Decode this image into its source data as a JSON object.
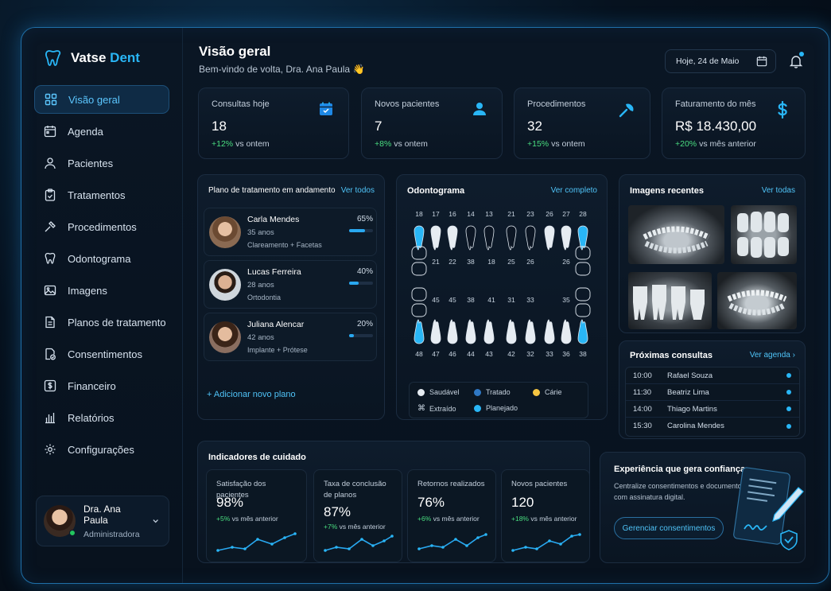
{
  "brand": {
    "name_main": "Vatse",
    "name_accent": "Dent"
  },
  "sidebar": {
    "items": [
      {
        "label": "Visão geral",
        "icon": "grid-icon",
        "active": true
      },
      {
        "label": "Agenda",
        "icon": "calendar-icon"
      },
      {
        "label": "Pacientes",
        "icon": "user-icon"
      },
      {
        "label": "Tratamentos",
        "icon": "clipboard-icon"
      },
      {
        "label": "Procedimentos",
        "icon": "tools-icon"
      },
      {
        "label": "Odontograma",
        "icon": "tooth-icon"
      },
      {
        "label": "Imagens",
        "icon": "image-icon"
      },
      {
        "label": "Planos de tratamento",
        "icon": "document-icon"
      },
      {
        "label": "Consentimentos",
        "icon": "consent-icon"
      },
      {
        "label": "Financeiro",
        "icon": "dollar-icon"
      },
      {
        "label": "Relatórios",
        "icon": "chart-icon"
      },
      {
        "label": "Configurações",
        "icon": "gear-icon"
      }
    ],
    "user": {
      "name": "Dra. Ana Paula",
      "role": "Administradora"
    }
  },
  "header": {
    "title": "Visão geral",
    "subtitle": "Bem-vindo de volta, Dra. Ana Paula 👋",
    "date": "Hoje, 24 de Maio"
  },
  "stats": [
    {
      "label": "Consultas hoje",
      "value": "18",
      "delta": "+12%",
      "delta_text": "vs ontem",
      "icon": "calendar-icon"
    },
    {
      "label": "Novos pacientes",
      "value": "7",
      "delta": "+8%",
      "delta_text": "vs ontem",
      "icon": "user-icon"
    },
    {
      "label": "Procedimentos",
      "value": "32",
      "delta": "+15%",
      "delta_text": "vs ontem",
      "icon": "tools-icon"
    },
    {
      "label": "Faturamento do mês",
      "value": "R$ 18.430,00",
      "delta": "+20%",
      "delta_text": "vs mês anterior",
      "icon": "dollar-icon"
    }
  ],
  "plans": {
    "title": "Plano de tratamento em andamento",
    "link": "Ver todos",
    "items": [
      {
        "name": "Carla Mendes",
        "age": "35 anos",
        "desc": "Clareamento + Facetas",
        "pct": "65%",
        "progress": 0.65
      },
      {
        "name": "Lucas Ferreira",
        "age": "28 anos",
        "desc": "Ortodontia",
        "pct": "40%",
        "progress": 0.4
      },
      {
        "name": "Juliana Alencar",
        "age": "42 anos",
        "desc": "Implante + Prótese",
        "pct": "20%",
        "progress": 0.2
      }
    ],
    "add": "+ Adicionar novo plano"
  },
  "odontogram": {
    "title": "Odontograma",
    "link": "Ver completo",
    "upper_top": [
      "18",
      "17",
      "16",
      "14",
      "13",
      "21",
      "23",
      "26",
      "27",
      "28"
    ],
    "upper_bottom": [
      "21",
      "22",
      "38",
      "18",
      "25",
      "26",
      "26"
    ],
    "lower_top": [
      "45",
      "45",
      "38",
      "41",
      "31",
      "33",
      "35"
    ],
    "lower_bottom": [
      "48",
      "47",
      "46",
      "44",
      "43",
      "42",
      "32",
      "33",
      "36",
      "38"
    ],
    "legend": [
      {
        "label": "Saudável",
        "color": "#e6ecf2"
      },
      {
        "label": "Tratado",
        "color": "#2f78c4"
      },
      {
        "label": "Cárie",
        "color": "#f5c542"
      },
      {
        "label": "Extraído",
        "color": "#c8d4e0"
      },
      {
        "label": "Planejado",
        "color": "#29b6f6"
      }
    ]
  },
  "images": {
    "title": "Imagens recentes",
    "link": "Ver todas"
  },
  "appointments": {
    "title": "Próximas consultas",
    "link": "Ver agenda",
    "items": [
      {
        "time": "10:00",
        "name": "Rafael Souza"
      },
      {
        "time": "11:30",
        "name": "Beatriz Lima"
      },
      {
        "time": "14:00",
        "name": "Thiago Martins"
      },
      {
        "time": "15:30",
        "name": "Carolina Mendes"
      }
    ]
  },
  "indicators": {
    "title": "Indicadores de cuidado",
    "items": [
      {
        "label": "Satisfação dos pacientes",
        "value": "98%",
        "delta": "+5%",
        "delta_text": "vs mês anterior"
      },
      {
        "label": "Taxa de conclusão de planos",
        "value": "87%",
        "delta": "+7%",
        "delta_text": "vs mês anterior"
      },
      {
        "label": "Retornos realizados",
        "value": "76%",
        "delta": "+6%",
        "delta_text": "vs mês anterior"
      },
      {
        "label": "Novos pacientes",
        "value": "120",
        "delta": "+18%",
        "delta_text": "vs mês anterior"
      }
    ]
  },
  "promo": {
    "title": "Experiência que gera confiança",
    "desc": "Centralize consentimentos e documentos com assinatura digital.",
    "button": "Gerenciar consentimentos"
  }
}
